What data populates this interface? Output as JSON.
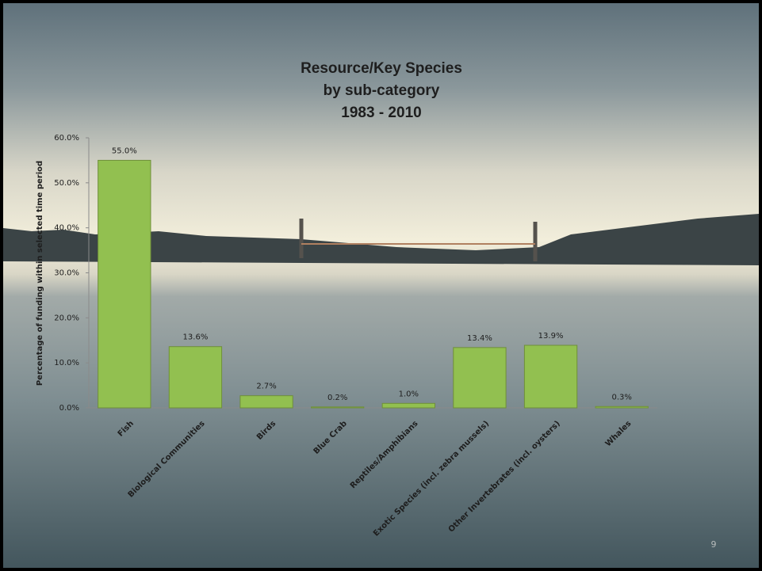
{
  "chart_data": {
    "type": "bar",
    "title": [
      "Resource/Key Species",
      "by sub-category",
      "1983 - 2010"
    ],
    "y_label": "Percentage of funding within selected time period",
    "categories": [
      "Fish",
      "Biological Communities",
      "Birds",
      "Blue Crab",
      "Reptiles/Amphibians",
      "Exotic Species (incl. zebra mussels)",
      "Other Invertebrates (incl. oysters)",
      "Whales"
    ],
    "values": [
      55.0,
      13.6,
      2.7,
      0.2,
      1.0,
      13.4,
      13.9,
      0.3
    ],
    "value_labels": [
      "55.0%",
      "13.6%",
      "2.7%",
      "0.2%",
      "1.0%",
      "13.4%",
      "13.9%",
      "0.3%"
    ],
    "color": "#92c050",
    "ylim": [
      0,
      60
    ],
    "yticks": [
      {
        "value": 0,
        "label": "0.0%"
      },
      {
        "value": 10,
        "label": "10.0%"
      },
      {
        "value": 20,
        "label": "20.0%"
      },
      {
        "value": 30,
        "label": "30.0%"
      },
      {
        "value": 40,
        "label": "40.0%"
      },
      {
        "value": 50,
        "label": "50.0%"
      },
      {
        "value": 60,
        "label": "60.0%"
      }
    ],
    "grid": false
  },
  "slide_number": "9"
}
